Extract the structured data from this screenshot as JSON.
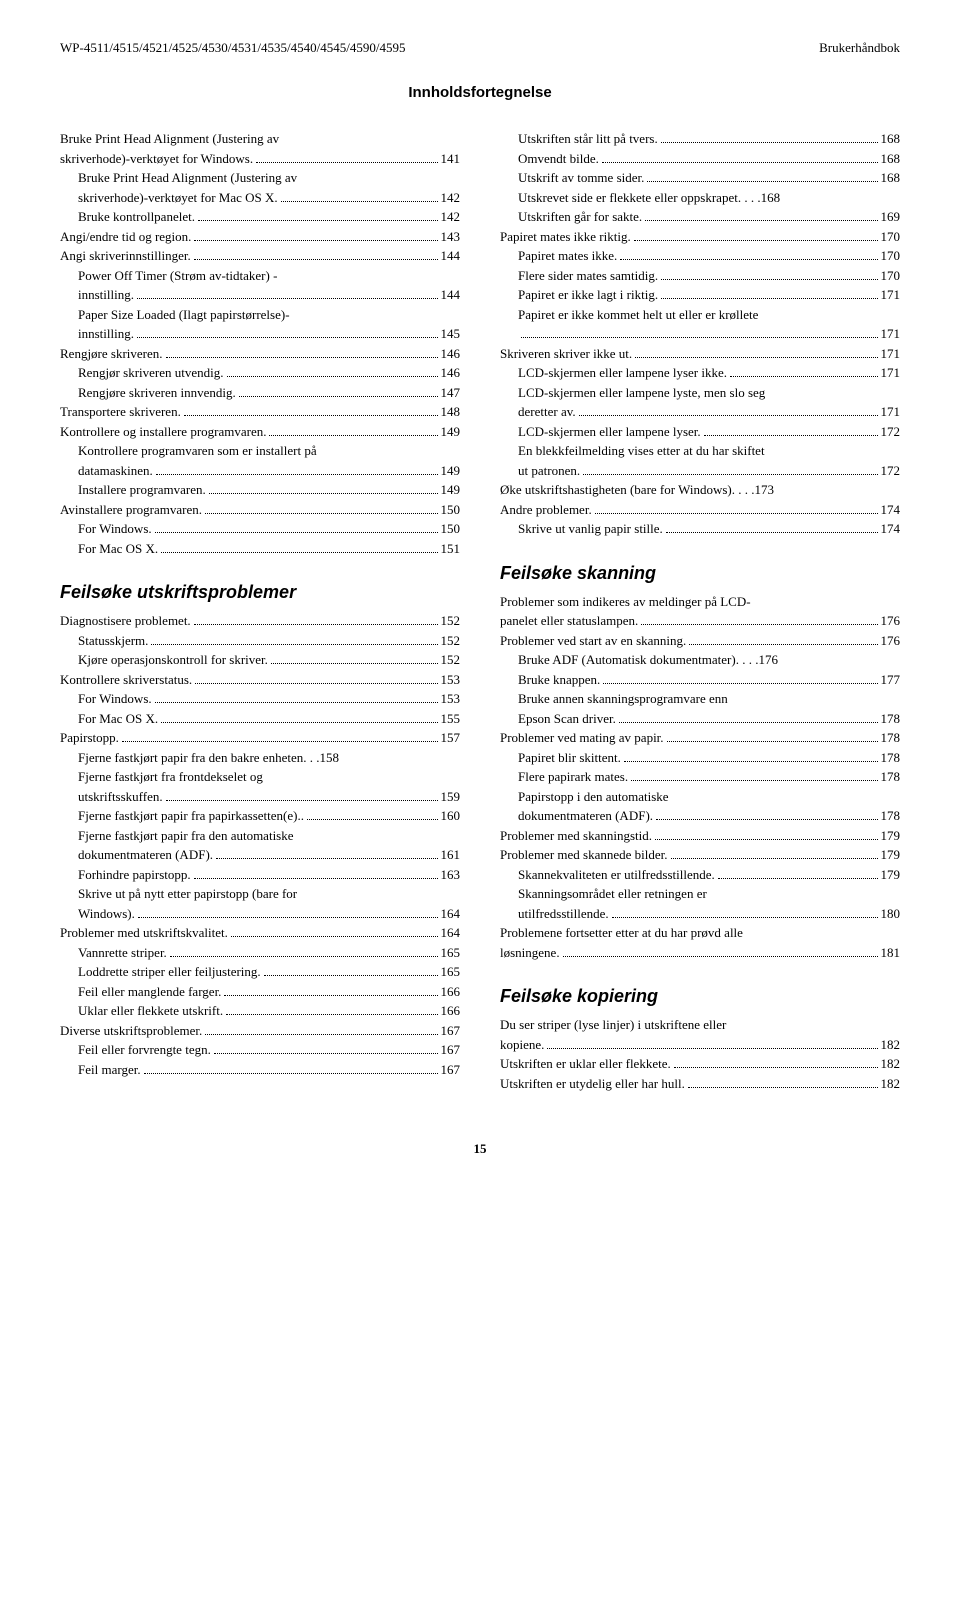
{
  "header": {
    "left": "WP-4511/4515/4521/4525/4530/4531/4535/4540/4545/4590/4595",
    "right": "Brukerhåndbok"
  },
  "mainHeading": "Innholdsfortegnelse",
  "left": {
    "entries": [
      {
        "wrapLabel": "Bruke Print Head Alignment (Justering av",
        "cont": true
      },
      {
        "label": "skriverhode)-verktøyet for Windows.",
        "page": "141"
      },
      {
        "indent": true,
        "wrapLabel": "Bruke Print Head Alignment (Justering av",
        "cont": true
      },
      {
        "indent": true,
        "label": "skriverhode)-verktøyet for Mac OS X.",
        "page": "142"
      },
      {
        "indent": true,
        "label": "Bruke kontrollpanelet.",
        "page": "142"
      },
      {
        "label": "Angi/endre tid og region.",
        "page": "143"
      },
      {
        "label": "Angi skriverinnstillinger.",
        "page": "144"
      },
      {
        "indent": true,
        "wrapLabel": "Power Off Timer (Strøm av-tidtaker) -",
        "cont": true
      },
      {
        "indent": true,
        "label": "innstilling.",
        "page": "144"
      },
      {
        "indent": true,
        "wrapLabel": "Paper Size Loaded (Ilagt papirstørrelse)-",
        "cont": true
      },
      {
        "indent": true,
        "label": "innstilling.",
        "page": "145"
      },
      {
        "label": "Rengjøre skriveren.",
        "page": "146"
      },
      {
        "indent": true,
        "label": "Rengjør skriveren utvendig.",
        "page": "146"
      },
      {
        "indent": true,
        "label": "Rengjøre skriveren innvendig.",
        "page": "147"
      },
      {
        "label": "Transportere skriveren.",
        "page": "148"
      },
      {
        "label": "Kontrollere og installere programvaren.",
        "page": "149"
      },
      {
        "indent": true,
        "wrapLabel": "Kontrollere programvaren som er installert på",
        "cont": true
      },
      {
        "indent": true,
        "label": "datamaskinen.",
        "page": "149"
      },
      {
        "indent": true,
        "label": "Installere programvaren.",
        "page": "149"
      },
      {
        "label": "Avinstallere programvaren.",
        "page": "150"
      },
      {
        "indent": true,
        "label": "For Windows.",
        "page": "150"
      },
      {
        "indent": true,
        "label": "For Mac OS X.",
        "page": "151"
      }
    ],
    "section1Title": "Feilsøke utskriftsproblemer",
    "section1": [
      {
        "label": "Diagnostisere problemet.",
        "page": "152"
      },
      {
        "indent": true,
        "label": "Statusskjerm.",
        "page": "152"
      },
      {
        "indent": true,
        "label": "Kjøre operasjonskontroll for skriver.",
        "page": "152"
      },
      {
        "label": "Kontrollere skriverstatus.",
        "page": "153"
      },
      {
        "indent": true,
        "label": "For Windows.",
        "page": "153"
      },
      {
        "indent": true,
        "label": "For Mac OS X.",
        "page": "155"
      },
      {
        "label": "Papirstopp.",
        "page": "157"
      },
      {
        "indent": true,
        "label": "Fjerne fastkjørt papir fra den bakre enheten. . .",
        "page": "158",
        "nodots": true
      },
      {
        "indent": true,
        "wrapLabel": "Fjerne fastkjørt fra frontdekselet og",
        "cont": true
      },
      {
        "indent": true,
        "label": "utskriftsskuffen.",
        "page": "159"
      },
      {
        "indent": true,
        "label": "Fjerne fastkjørt papir fra papirkassetten(e)..",
        "page": "160"
      },
      {
        "indent": true,
        "wrapLabel": "Fjerne fastkjørt papir fra den automatiske",
        "cont": true
      },
      {
        "indent": true,
        "label": "dokumentmateren (ADF).",
        "page": "161"
      },
      {
        "indent": true,
        "label": "Forhindre papirstopp.",
        "page": "163"
      },
      {
        "indent": true,
        "wrapLabel": "Skrive ut på nytt etter papirstopp (bare for",
        "cont": true
      },
      {
        "indent": true,
        "label": "Windows).",
        "page": "164"
      },
      {
        "label": "Problemer med utskriftskvalitet.",
        "page": "164"
      },
      {
        "indent": true,
        "label": "Vannrette striper.",
        "page": "165"
      },
      {
        "indent": true,
        "label": "Loddrette striper eller feiljustering.",
        "page": "165"
      },
      {
        "indent": true,
        "label": "Feil eller manglende farger.",
        "page": "166"
      },
      {
        "indent": true,
        "label": "Uklar eller flekkete utskrift.",
        "page": "166"
      },
      {
        "label": "Diverse utskriftsproblemer.",
        "page": "167"
      },
      {
        "indent": true,
        "label": "Feil eller forvrengte tegn.",
        "page": "167"
      },
      {
        "indent": true,
        "label": "Feil marger.",
        "page": "167"
      }
    ]
  },
  "right": {
    "entries": [
      {
        "indent": true,
        "label": "Utskriften står litt på tvers.",
        "page": "168"
      },
      {
        "indent": true,
        "label": "Omvendt bilde.",
        "page": "168"
      },
      {
        "indent": true,
        "label": "Utskrift av tomme sider.",
        "page": "168"
      },
      {
        "indent": true,
        "label": "Utskrevet side er flekkete eller oppskrapet. . . .",
        "page": "168",
        "nodots": true
      },
      {
        "indent": true,
        "label": "Utskriften går for sakte.",
        "page": "169"
      },
      {
        "label": "Papiret mates ikke riktig.",
        "page": "170"
      },
      {
        "indent": true,
        "label": "Papiret mates ikke.",
        "page": "170"
      },
      {
        "indent": true,
        "label": "Flere sider mates samtidig.",
        "page": "170"
      },
      {
        "indent": true,
        "label": "Papiret er ikke lagt i riktig.",
        "page": "171"
      },
      {
        "indent": true,
        "wrapLabel": "Papiret er ikke kommet helt ut eller er krøllete",
        "cont": true
      },
      {
        "indent": true,
        "label": "",
        "page": "171"
      },
      {
        "label": "Skriveren skriver ikke ut.",
        "page": "171"
      },
      {
        "indent": true,
        "label": "LCD-skjermen eller lampene lyser ikke.",
        "page": "171"
      },
      {
        "indent": true,
        "wrapLabel": "LCD-skjermen eller lampene lyste, men slo seg",
        "cont": true
      },
      {
        "indent": true,
        "label": "deretter av.",
        "page": "171"
      },
      {
        "indent": true,
        "label": "LCD-skjermen eller lampene lyser.",
        "page": "172"
      },
      {
        "indent": true,
        "wrapLabel": "En blekkfeilmelding vises etter at du har skiftet",
        "cont": true
      },
      {
        "indent": true,
        "label": "ut patronen.",
        "page": "172"
      },
      {
        "label": "Øke utskriftshastigheten (bare for Windows). . . .",
        "page": "173",
        "nodots": true
      },
      {
        "label": "Andre problemer.",
        "page": "174"
      },
      {
        "indent": true,
        "label": "Skrive ut vanlig papir stille.",
        "page": "174"
      }
    ],
    "section1Title": "Feilsøke skanning",
    "section1": [
      {
        "wrapLabel": "Problemer som indikeres av meldinger på LCD-",
        "cont": true
      },
      {
        "label": "panelet eller statuslampen.",
        "page": "176"
      },
      {
        "label": "Problemer ved start av en skanning.",
        "page": "176"
      },
      {
        "indent": true,
        "label": "Bruke ADF (Automatisk dokumentmater). . . .",
        "page": "176",
        "nodots": true
      },
      {
        "indent": true,
        "label": "Bruke knappen.",
        "page": "177"
      },
      {
        "indent": true,
        "wrapLabel": "Bruke annen skanningsprogramvare enn",
        "cont": true
      },
      {
        "indent": true,
        "label": "Epson Scan driver.",
        "page": "178"
      },
      {
        "label": "Problemer ved mating av papir.",
        "page": "178"
      },
      {
        "indent": true,
        "label": "Papiret blir skittent.",
        "page": "178"
      },
      {
        "indent": true,
        "label": "Flere papirark mates.",
        "page": "178"
      },
      {
        "indent": true,
        "wrapLabel": "Papirstopp i den automatiske",
        "cont": true
      },
      {
        "indent": true,
        "label": "dokumentmateren (ADF).",
        "page": "178"
      },
      {
        "label": "Problemer med skanningstid.",
        "page": "179"
      },
      {
        "label": "Problemer med skannede bilder.",
        "page": "179"
      },
      {
        "indent": true,
        "label": "Skannekvaliteten er utilfredsstillende.",
        "page": "179"
      },
      {
        "indent": true,
        "wrapLabel": "Skanningsområdet eller retningen er",
        "cont": true
      },
      {
        "indent": true,
        "label": "utilfredsstillende.",
        "page": "180"
      },
      {
        "wrapLabel": "Problemene fortsetter etter at du har prøvd alle",
        "cont": true
      },
      {
        "label": "løsningene.",
        "page": "181"
      }
    ],
    "section2Title": "Feilsøke kopiering",
    "section2": [
      {
        "wrapLabel": "Du ser striper (lyse linjer) i utskriftene eller",
        "cont": true
      },
      {
        "label": "kopiene.",
        "page": "182"
      },
      {
        "label": "Utskriften er uklar eller flekkete.",
        "page": "182"
      },
      {
        "label": "Utskriften er utydelig eller har hull.",
        "page": "182"
      }
    ]
  },
  "pageNumber": "15"
}
